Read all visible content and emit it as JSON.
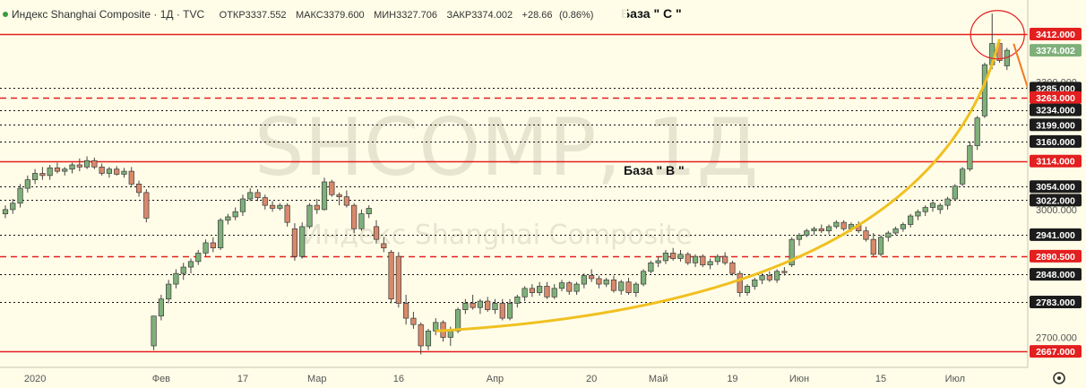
{
  "header": {
    "title": "Индекс Shanghai Composite · 1Д · TVC",
    "ohlc": [
      {
        "label": "ОТКР",
        "value": "3337.552"
      },
      {
        "label": "МАКС",
        "value": "3379.600"
      },
      {
        "label": "МИН",
        "value": "3327.706"
      },
      {
        "label": "ЗАКР",
        "value": "3374.002"
      },
      {
        "label": "",
        "value": "+28.66"
      },
      {
        "label": "",
        "value": "(0.86%)"
      }
    ]
  },
  "watermark": {
    "symbol": "SHCOMP, 1Д",
    "name": "Индекс Shanghai Composite"
  },
  "annotations": {
    "base_c": "База \" С \"",
    "base_b": "База \" В \""
  },
  "colors": {
    "bg": "#fffde8",
    "up": "#7fb07a",
    "down": "#d9896b",
    "level": "#e31f1f",
    "curve": "#f0c020",
    "arrow": "#f07b1e"
  },
  "footer": {
    "settings_icon": "gear-icon"
  },
  "chart_data": {
    "type": "candlestick",
    "ylim": [
      2640,
      3450
    ],
    "y_axis_ticks": [
      "2700.000",
      "3000.000",
      "3300.000"
    ],
    "price_labels": [
      {
        "value": "3412.000",
        "style": "red-box"
      },
      {
        "value": "3374.002",
        "style": "green-box"
      },
      {
        "value": "3285.000",
        "style": "dark-box"
      },
      {
        "value": "3263.000",
        "style": "red-box"
      },
      {
        "value": "3234.000",
        "style": "dark-box"
      },
      {
        "value": "3199.000",
        "style": "dark-box"
      },
      {
        "value": "3160.000",
        "style": "dark-box"
      },
      {
        "value": "3114.000",
        "style": "red-box"
      },
      {
        "value": "3054.000",
        "style": "dark-box"
      },
      {
        "value": "3022.000",
        "style": "dark-box"
      },
      {
        "value": "2941.000",
        "style": "dark-box"
      },
      {
        "value": "2890.500",
        "style": "red-box"
      },
      {
        "value": "2848.000",
        "style": "dark-box"
      },
      {
        "value": "2783.000",
        "style": "dark-box"
      },
      {
        "value": "2667.000",
        "style": "red-box"
      }
    ],
    "levels": [
      {
        "value": 3412,
        "style": "solid"
      },
      {
        "value": 3285,
        "style": "dotted"
      },
      {
        "value": 3263,
        "style": "dashed"
      },
      {
        "value": 3234,
        "style": "dotted"
      },
      {
        "value": 3199,
        "style": "dotted"
      },
      {
        "value": 3160,
        "style": "dotted"
      },
      {
        "value": 3114,
        "style": "solid"
      },
      {
        "value": 3054,
        "style": "dotted"
      },
      {
        "value": 3022,
        "style": "dotted"
      },
      {
        "value": 2941,
        "style": "dotted"
      },
      {
        "value": 2890.5,
        "style": "dashed"
      },
      {
        "value": 2848,
        "style": "dotted"
      },
      {
        "value": 2783,
        "style": "dotted"
      },
      {
        "value": 2667,
        "style": "solid"
      }
    ],
    "x_labels": [
      {
        "label": "2020",
        "index": 4
      },
      {
        "label": "Фев",
        "index": 21
      },
      {
        "label": "17",
        "index": 32
      },
      {
        "label": "Мар",
        "index": 42
      },
      {
        "label": "16",
        "index": 53
      },
      {
        "label": "Апр",
        "index": 66
      },
      {
        "label": "20",
        "index": 79
      },
      {
        "label": "Май",
        "index": 88
      },
      {
        "label": "19",
        "index": 98
      },
      {
        "label": "Июн",
        "index": 107
      },
      {
        "label": "15",
        "index": 118
      },
      {
        "label": "Июл",
        "index": 128
      }
    ],
    "candles": [
      [
        2990,
        3010,
        2980,
        3000
      ],
      [
        3000,
        3025,
        2990,
        3015
      ],
      [
        3015,
        3060,
        3005,
        3050
      ],
      [
        3050,
        3080,
        3040,
        3070
      ],
      [
        3070,
        3095,
        3060,
        3085
      ],
      [
        3085,
        3100,
        3070,
        3080
      ],
      [
        3080,
        3105,
        3070,
        3098
      ],
      [
        3098,
        3110,
        3085,
        3090
      ],
      [
        3090,
        3100,
        3080,
        3095
      ],
      [
        3095,
        3110,
        3085,
        3105
      ],
      [
        3105,
        3120,
        3090,
        3100
      ],
      [
        3100,
        3125,
        3095,
        3115
      ],
      [
        3115,
        3122,
        3095,
        3100
      ],
      [
        3100,
        3108,
        3080,
        3085
      ],
      [
        3085,
        3100,
        3075,
        3095
      ],
      [
        3095,
        3102,
        3080,
        3083
      ],
      [
        3083,
        3098,
        3075,
        3090
      ],
      [
        3090,
        3100,
        3055,
        3060
      ],
      [
        3060,
        3068,
        3030,
        3040
      ],
      [
        3040,
        3048,
        2970,
        2980
      ],
      [
        2680,
        2750,
        2670,
        2750
      ],
      [
        2750,
        2800,
        2740,
        2790
      ],
      [
        2790,
        2835,
        2780,
        2825
      ],
      [
        2825,
        2860,
        2815,
        2850
      ],
      [
        2850,
        2875,
        2835,
        2865
      ],
      [
        2865,
        2885,
        2850,
        2878
      ],
      [
        2878,
        2905,
        2870,
        2898
      ],
      [
        2898,
        2930,
        2890,
        2922
      ],
      [
        2922,
        2935,
        2900,
        2910
      ],
      [
        2910,
        2980,
        2905,
        2975
      ],
      [
        2975,
        2990,
        2965,
        2983
      ],
      [
        2983,
        3005,
        2975,
        2995
      ],
      [
        2995,
        3035,
        2985,
        3025
      ],
      [
        3025,
        3050,
        3020,
        3040
      ],
      [
        3040,
        3048,
        3020,
        3028
      ],
      [
        3028,
        3035,
        3000,
        3010
      ],
      [
        3010,
        3020,
        2995,
        3003
      ],
      [
        3003,
        3015,
        2998,
        3010
      ],
      [
        3010,
        3015,
        2960,
        2970
      ],
      [
        2955,
        2968,
        2880,
        2890
      ],
      [
        2890,
        2970,
        2885,
        2960
      ],
      [
        2960,
        3015,
        2955,
        3010
      ],
      [
        3010,
        3025,
        2990,
        3000
      ],
      [
        3000,
        3075,
        2998,
        3065
      ],
      [
        3065,
        3070,
        3030,
        3035
      ],
      [
        3035,
        3040,
        3010,
        3030
      ],
      [
        3030,
        3045,
        3005,
        3010
      ],
      [
        3010,
        3015,
        2945,
        2955
      ],
      [
        2955,
        3000,
        2950,
        2990
      ],
      [
        2990,
        3010,
        2980,
        3003
      ],
      [
        2960,
        2975,
        2920,
        2930
      ],
      [
        2920,
        2935,
        2900,
        2910
      ],
      [
        2900,
        2905,
        2780,
        2790
      ],
      [
        2890,
        2900,
        2770,
        2780
      ],
      [
        2780,
        2800,
        2730,
        2745
      ],
      [
        2745,
        2760,
        2720,
        2730
      ],
      [
        2730,
        2735,
        2660,
        2680
      ],
      [
        2680,
        2720,
        2670,
        2715
      ],
      [
        2715,
        2745,
        2705,
        2735
      ],
      [
        2735,
        2740,
        2690,
        2700
      ],
      [
        2700,
        2725,
        2680,
        2715
      ],
      [
        2715,
        2770,
        2710,
        2765
      ],
      [
        2765,
        2790,
        2755,
        2780
      ],
      [
        2780,
        2800,
        2765,
        2770
      ],
      [
        2770,
        2790,
        2755,
        2785
      ],
      [
        2785,
        2795,
        2760,
        2765
      ],
      [
        2765,
        2790,
        2755,
        2780
      ],
      [
        2780,
        2790,
        2740,
        2745
      ],
      [
        2745,
        2790,
        2740,
        2780
      ],
      [
        2780,
        2800,
        2770,
        2795
      ],
      [
        2795,
        2820,
        2785,
        2815
      ],
      [
        2815,
        2825,
        2795,
        2805
      ],
      [
        2805,
        2830,
        2798,
        2820
      ],
      [
        2820,
        2830,
        2790,
        2795
      ],
      [
        2795,
        2825,
        2790,
        2815
      ],
      [
        2815,
        2835,
        2808,
        2828
      ],
      [
        2828,
        2832,
        2800,
        2808
      ],
      [
        2808,
        2830,
        2800,
        2825
      ],
      [
        2825,
        2850,
        2815,
        2845
      ],
      [
        2845,
        2860,
        2830,
        2838
      ],
      [
        2838,
        2845,
        2815,
        2825
      ],
      [
        2825,
        2840,
        2818,
        2835
      ],
      [
        2835,
        2845,
        2805,
        2810
      ],
      [
        2810,
        2835,
        2800,
        2830
      ],
      [
        2830,
        2840,
        2800,
        2805
      ],
      [
        2805,
        2830,
        2795,
        2825
      ],
      [
        2825,
        2860,
        2820,
        2855
      ],
      [
        2855,
        2880,
        2850,
        2875
      ],
      [
        2875,
        2890,
        2865,
        2880
      ],
      [
        2880,
        2905,
        2872,
        2898
      ],
      [
        2898,
        2910,
        2880,
        2885
      ],
      [
        2885,
        2905,
        2878,
        2895
      ],
      [
        2895,
        2900,
        2870,
        2875
      ],
      [
        2875,
        2895,
        2865,
        2890
      ],
      [
        2890,
        2895,
        2865,
        2870
      ],
      [
        2870,
        2885,
        2860,
        2878
      ],
      [
        2878,
        2895,
        2870,
        2890
      ],
      [
        2890,
        2900,
        2870,
        2875
      ],
      [
        2875,
        2880,
        2845,
        2850
      ],
      [
        2850,
        2856,
        2795,
        2805
      ],
      [
        2805,
        2825,
        2798,
        2820
      ],
      [
        2820,
        2840,
        2812,
        2835
      ],
      [
        2835,
        2850,
        2825,
        2845
      ],
      [
        2845,
        2855,
        2830,
        2835
      ],
      [
        2835,
        2860,
        2828,
        2855
      ],
      [
        2855,
        2865,
        2845,
        2852
      ],
      [
        2870,
        2935,
        2865,
        2930
      ],
      [
        2930,
        2945,
        2915,
        2940
      ],
      [
        2940,
        2955,
        2935,
        2950
      ],
      [
        2950,
        2960,
        2940,
        2955
      ],
      [
        2955,
        2965,
        2945,
        2950
      ],
      [
        2950,
        2965,
        2942,
        2960
      ],
      [
        2960,
        2975,
        2955,
        2970
      ],
      [
        2970,
        2975,
        2950,
        2955
      ],
      [
        2955,
        2970,
        2948,
        2965
      ],
      [
        2965,
        2972,
        2945,
        2950
      ],
      [
        2950,
        2960,
        2925,
        2930
      ],
      [
        2930,
        2945,
        2890,
        2895
      ],
      [
        2895,
        2940,
        2890,
        2935
      ],
      [
        2935,
        2950,
        2925,
        2945
      ],
      [
        2945,
        2960,
        2940,
        2955
      ],
      [
        2955,
        2970,
        2948,
        2965
      ],
      [
        2965,
        2990,
        2958,
        2985
      ],
      [
        2985,
        3000,
        2975,
        2995
      ],
      [
        2995,
        3010,
        2985,
        3005
      ],
      [
        3005,
        3020,
        2995,
        3015
      ],
      [
        3000,
        3015,
        2990,
        3010
      ],
      [
        3010,
        3030,
        3000,
        3025
      ],
      [
        3025,
        3060,
        3020,
        3055
      ],
      [
        3060,
        3100,
        3055,
        3095
      ],
      [
        3095,
        3160,
        3090,
        3150
      ],
      [
        3150,
        3220,
        3140,
        3215
      ],
      [
        3220,
        3345,
        3215,
        3340
      ],
      [
        3340,
        3460,
        3330,
        3390
      ],
      [
        3390,
        3400,
        3345,
        3350
      ],
      [
        3337.552,
        3379.6,
        3327.706,
        3374.002
      ]
    ]
  }
}
